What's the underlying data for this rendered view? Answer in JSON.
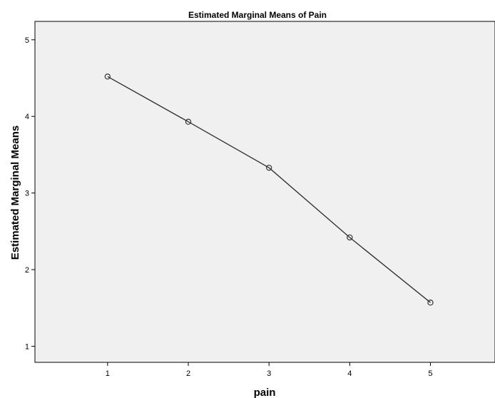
{
  "chart_data": {
    "type": "line",
    "title": "Estimated Marginal Means of Pain",
    "xlabel": "pain",
    "ylabel": "Estimated Marginal Means",
    "x": [
      1,
      2,
      3,
      4,
      5
    ],
    "x_ticks": [
      "1",
      "2",
      "3",
      "4",
      "5"
    ],
    "y_ticks": [
      "1",
      "2",
      "3",
      "4",
      "5"
    ],
    "xlim": [
      0.1,
      5.8
    ],
    "ylim": [
      0.79,
      5.24
    ],
    "grid": false,
    "series": [
      {
        "values": [
          4.52,
          3.93,
          3.33,
          2.42,
          1.57
        ]
      }
    ],
    "colors": {
      "plot_background": "#f0f0f0",
      "line": "#333333",
      "marker": "#333333"
    }
  }
}
